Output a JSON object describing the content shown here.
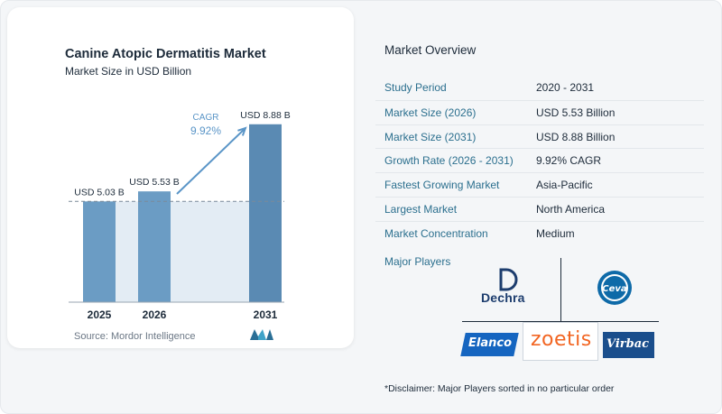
{
  "chart_data": {
    "type": "bar",
    "title": "Canine Atopic Dermatitis Market",
    "subtitle": "Market Size in USD Billion",
    "categories": [
      "2025",
      "2026",
      "2031"
    ],
    "values": [
      5.03,
      5.53,
      8.88
    ],
    "data_labels": [
      "USD 5.03 B",
      "USD 5.53 B",
      "USD 8.88 B"
    ],
    "cagr_label": "CAGR",
    "cagr_value": "9.92%",
    "ylim": [
      0,
      9.5
    ],
    "colors": {
      "bar": "#6b9cc4",
      "bar_dark": "#5a8ab3",
      "band": "#e3ecf4",
      "arrow": "#5a95c7",
      "cagr": "#5a95c7"
    }
  },
  "source": "Source:  Mordor Intelligence",
  "overview": {
    "title": "Market Overview",
    "rows": [
      {
        "label": "Study Period",
        "value": "2020 - 2031"
      },
      {
        "label": "Market Size (2026)",
        "value": "USD 5.53 Billion"
      },
      {
        "label": "Market Size (2031)",
        "value": "USD 8.88 Billion"
      },
      {
        "label": "Growth Rate (2026 - 2031)",
        "value": "9.92% CAGR"
      },
      {
        "label": "Fastest Growing Market",
        "value": "Asia-Pacific"
      },
      {
        "label": "Largest Market",
        "value": "North America"
      },
      {
        "label": "Market Concentration",
        "value": "Medium"
      }
    ],
    "players_title": "Major Players",
    "players": {
      "dechra": "Dechra",
      "ceva": "Ceva",
      "elanco": "Elanco",
      "zoetis": "zoetis",
      "virbac": "Virbac"
    },
    "disclaimer": "*Disclaimer: Major Players sorted in no particular order"
  }
}
